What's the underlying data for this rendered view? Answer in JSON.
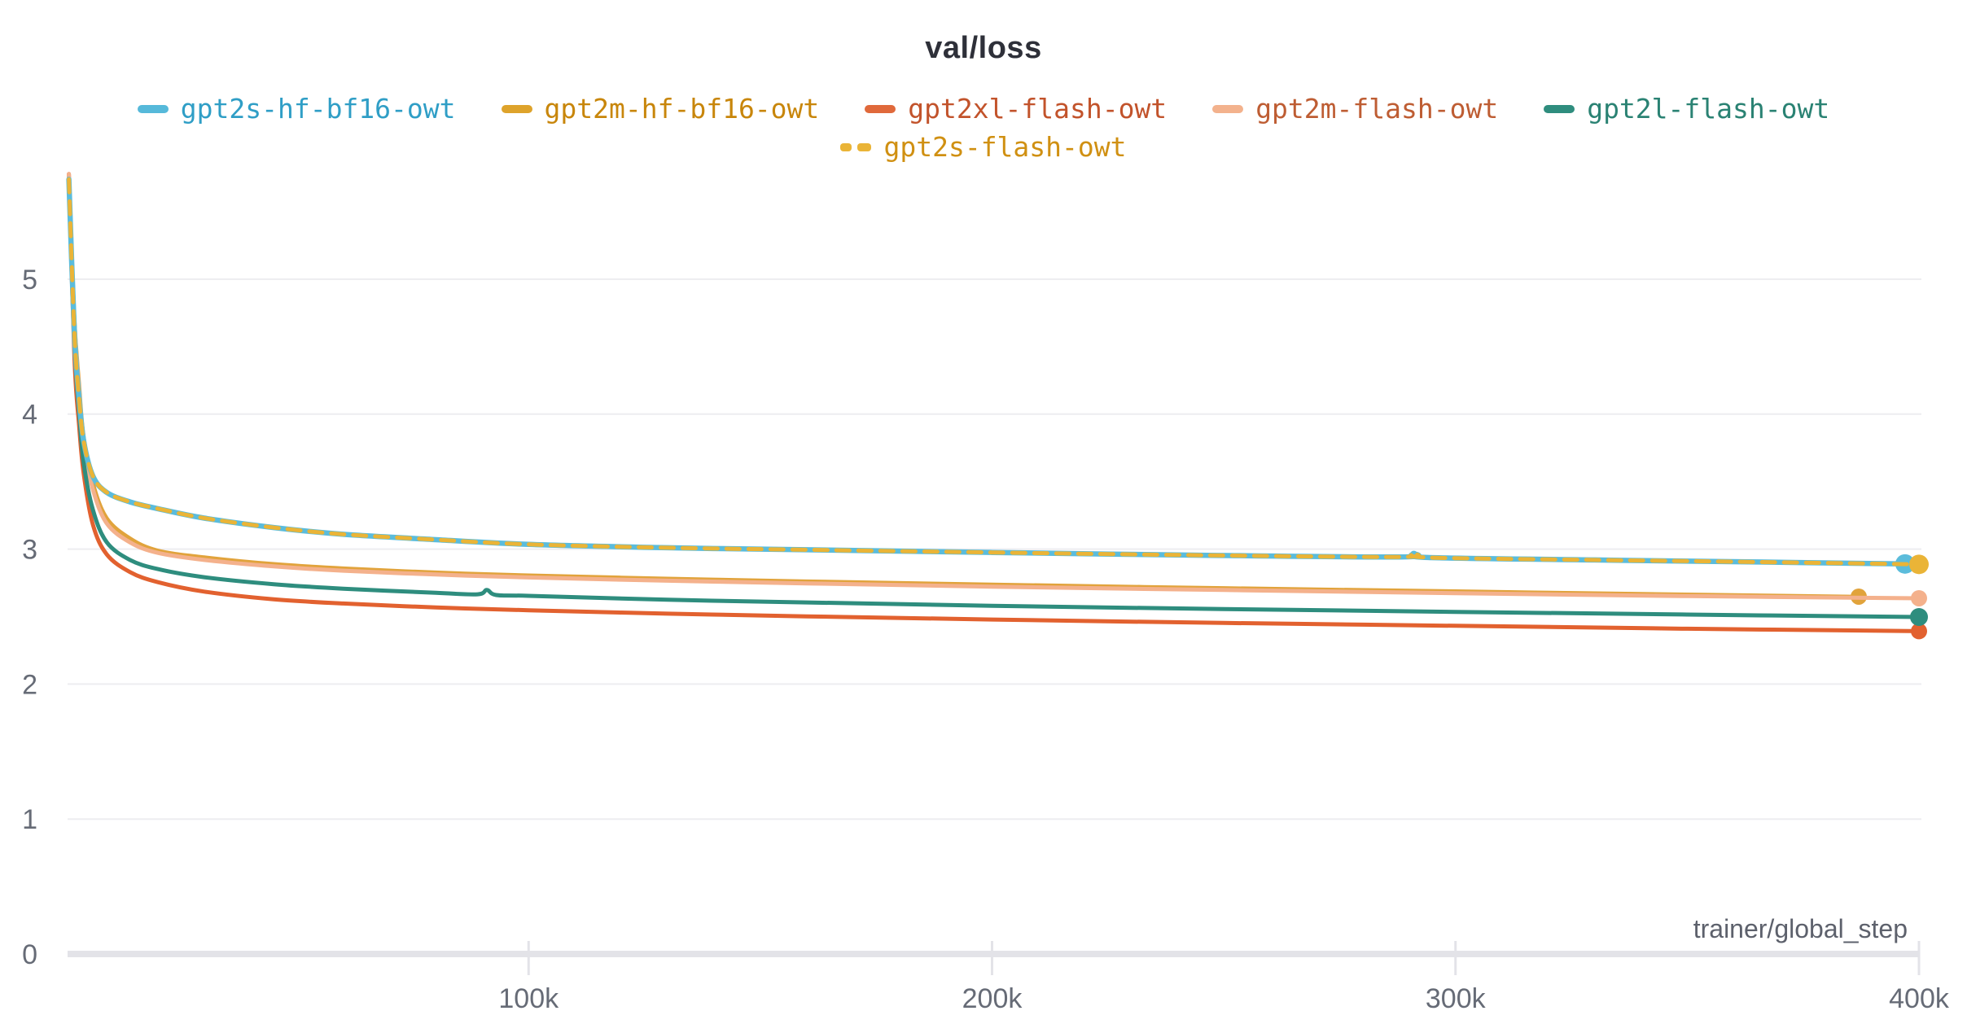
{
  "title": "val/loss",
  "x_axis_label": "trainer/global_step",
  "colors": {
    "background": "#ffffff",
    "grid": "#ededf0",
    "axis": "#e3e3e8",
    "tick_text": "#666b76",
    "title_text": "#2e3039",
    "axis_label_text": "#5d616c"
  },
  "legend": {
    "rows": [
      [
        {
          "label": "gpt2s-hf-bf16-owt",
          "text_color": "#2f9ec6",
          "swatch_color": "#56b9da",
          "dashed": false
        },
        {
          "label": "gpt2m-hf-bf16-owt",
          "text_color": "#c8860b",
          "swatch_color": "#dea32b",
          "dashed": false
        },
        {
          "label": "gpt2xl-flash-owt",
          "text_color": "#c2532b",
          "swatch_color": "#e0693b",
          "dashed": false
        },
        {
          "label": "gpt2m-flash-owt",
          "text_color": "#be5d33",
          "swatch_color": "#f3b28d",
          "dashed": false
        },
        {
          "label": "gpt2l-flash-owt",
          "text_color": "#2a8273",
          "swatch_color": "#2f8d7e",
          "dashed": false
        }
      ],
      [
        {
          "label": "gpt2s-flash-owt",
          "text_color": "#d09012",
          "swatch_color": "#eab437",
          "dashed": true
        }
      ]
    ]
  },
  "chart_data": {
    "type": "line",
    "title": "val/loss",
    "xlabel": "trainer/global_step",
    "ylabel": "",
    "xlim": [
      0,
      400000
    ],
    "ylim": [
      0,
      5.8
    ],
    "grid": "horizontal",
    "legend_position": "top",
    "y_ticks": [
      0,
      1,
      2,
      3,
      4,
      5
    ],
    "x_ticks": [
      {
        "value": 100000,
        "label": "100k"
      },
      {
        "value": 200000,
        "label": "200k"
      },
      {
        "value": 300000,
        "label": "300k"
      },
      {
        "value": 400000,
        "label": "400k"
      }
    ],
    "series": [
      {
        "name": "gpt2m-hf-bf16-owt",
        "color": "#e1a33b",
        "dashed": false,
        "width": 4.5,
        "end_dot_radius": 10,
        "points": [
          [
            800,
            5.76
          ],
          [
            2000,
            4.72
          ],
          [
            3000,
            4.24
          ],
          [
            4000,
            3.84
          ],
          [
            6000,
            3.49
          ],
          [
            9000,
            3.23
          ],
          [
            14000,
            3.08
          ],
          [
            20000,
            2.99
          ],
          [
            30000,
            2.94
          ],
          [
            45000,
            2.89
          ],
          [
            60000,
            2.858
          ],
          [
            80000,
            2.828
          ],
          [
            100000,
            2.806
          ],
          [
            130000,
            2.782
          ],
          [
            160000,
            2.762
          ],
          [
            200000,
            2.738
          ],
          [
            250000,
            2.712
          ],
          [
            300000,
            2.688
          ],
          [
            350000,
            2.664
          ],
          [
            387000,
            2.648
          ]
        ]
      },
      {
        "name": "gpt2xl-flash-owt",
        "color": "#e2612f",
        "dashed": false,
        "width": 5,
        "end_dot_radius": 10,
        "points": [
          [
            800,
            5.78
          ],
          [
            2000,
            4.42
          ],
          [
            3000,
            3.92
          ],
          [
            4000,
            3.56
          ],
          [
            6000,
            3.18
          ],
          [
            9000,
            2.96
          ],
          [
            14000,
            2.83
          ],
          [
            20000,
            2.755
          ],
          [
            30000,
            2.685
          ],
          [
            45000,
            2.628
          ],
          [
            60000,
            2.597
          ],
          [
            80000,
            2.568
          ],
          [
            100000,
            2.547
          ],
          [
            130000,
            2.522
          ],
          [
            160000,
            2.502
          ],
          [
            200000,
            2.478
          ],
          [
            250000,
            2.453
          ],
          [
            300000,
            2.432
          ],
          [
            350000,
            2.41
          ],
          [
            400000,
            2.392
          ]
        ]
      },
      {
        "name": "gpt2m-flash-owt",
        "color": "#f4b18c",
        "dashed": false,
        "width": 5,
        "end_dot_radius": 10,
        "points": [
          [
            800,
            5.78
          ],
          [
            2000,
            4.68
          ],
          [
            3000,
            4.18
          ],
          [
            4000,
            3.78
          ],
          [
            6000,
            3.44
          ],
          [
            9000,
            3.19
          ],
          [
            14000,
            3.05
          ],
          [
            20000,
            2.972
          ],
          [
            30000,
            2.92
          ],
          [
            45000,
            2.872
          ],
          [
            60000,
            2.84
          ],
          [
            80000,
            2.812
          ],
          [
            100000,
            2.79
          ],
          [
            130000,
            2.766
          ],
          [
            160000,
            2.746
          ],
          [
            200000,
            2.722
          ],
          [
            250000,
            2.697
          ],
          [
            300000,
            2.673
          ],
          [
            350000,
            2.652
          ],
          [
            400000,
            2.636
          ]
        ]
      },
      {
        "name": "gpt2l-flash-owt",
        "color": "#2e8d7e",
        "dashed": false,
        "width": 5,
        "end_dot_radius": 11,
        "points": [
          [
            800,
            5.72
          ],
          [
            2000,
            4.52
          ],
          [
            3000,
            4.02
          ],
          [
            4000,
            3.64
          ],
          [
            6000,
            3.29
          ],
          [
            9000,
            3.05
          ],
          [
            14000,
            2.92
          ],
          [
            20000,
            2.852
          ],
          [
            30000,
            2.792
          ],
          [
            45000,
            2.74
          ],
          [
            60000,
            2.707
          ],
          [
            80000,
            2.676
          ],
          [
            89000,
            2.665
          ],
          [
            91000,
            2.698
          ],
          [
            93000,
            2.66
          ],
          [
            100000,
            2.654
          ],
          [
            130000,
            2.625
          ],
          [
            160000,
            2.605
          ],
          [
            200000,
            2.58
          ],
          [
            250000,
            2.556
          ],
          [
            300000,
            2.535
          ],
          [
            350000,
            2.515
          ],
          [
            400000,
            2.497
          ]
        ]
      },
      {
        "name": "gpt2s-hf-bf16-owt",
        "color": "#5bbcdb",
        "dashed": false,
        "width": 6.5,
        "end_dot_radius": 12,
        "points": [
          [
            800,
            5.74
          ],
          [
            2000,
            4.6
          ],
          [
            3000,
            4.12
          ],
          [
            4000,
            3.8
          ],
          [
            6000,
            3.54
          ],
          [
            9000,
            3.42
          ],
          [
            14000,
            3.35
          ],
          [
            20000,
            3.3
          ],
          [
            30000,
            3.23
          ],
          [
            45000,
            3.16
          ],
          [
            60000,
            3.11
          ],
          [
            80000,
            3.07
          ],
          [
            100000,
            3.035
          ],
          [
            130000,
            3.01
          ],
          [
            160000,
            2.995
          ],
          [
            200000,
            2.975
          ],
          [
            245000,
            2.955
          ],
          [
            288000,
            2.942
          ],
          [
            291000,
            2.968
          ],
          [
            294000,
            2.938
          ],
          [
            330000,
            2.92
          ],
          [
            365000,
            2.905
          ],
          [
            397000,
            2.89
          ]
        ]
      },
      {
        "name": "gpt2s-flash-owt",
        "color": "#eab437",
        "dashed": true,
        "width": 5,
        "end_dot_radius": 12,
        "points": [
          [
            800,
            5.74
          ],
          [
            2000,
            4.6
          ],
          [
            3000,
            4.12
          ],
          [
            4000,
            3.8
          ],
          [
            6000,
            3.54
          ],
          [
            9000,
            3.42
          ],
          [
            14000,
            3.35
          ],
          [
            20000,
            3.3
          ],
          [
            30000,
            3.23
          ],
          [
            45000,
            3.16
          ],
          [
            60000,
            3.11
          ],
          [
            80000,
            3.07
          ],
          [
            100000,
            3.035
          ],
          [
            130000,
            3.01
          ],
          [
            160000,
            2.995
          ],
          [
            200000,
            2.975
          ],
          [
            245000,
            2.955
          ],
          [
            288000,
            2.942
          ],
          [
            291000,
            2.968
          ],
          [
            294000,
            2.938
          ],
          [
            330000,
            2.92
          ],
          [
            365000,
            2.905
          ],
          [
            400000,
            2.887
          ]
        ]
      }
    ]
  }
}
